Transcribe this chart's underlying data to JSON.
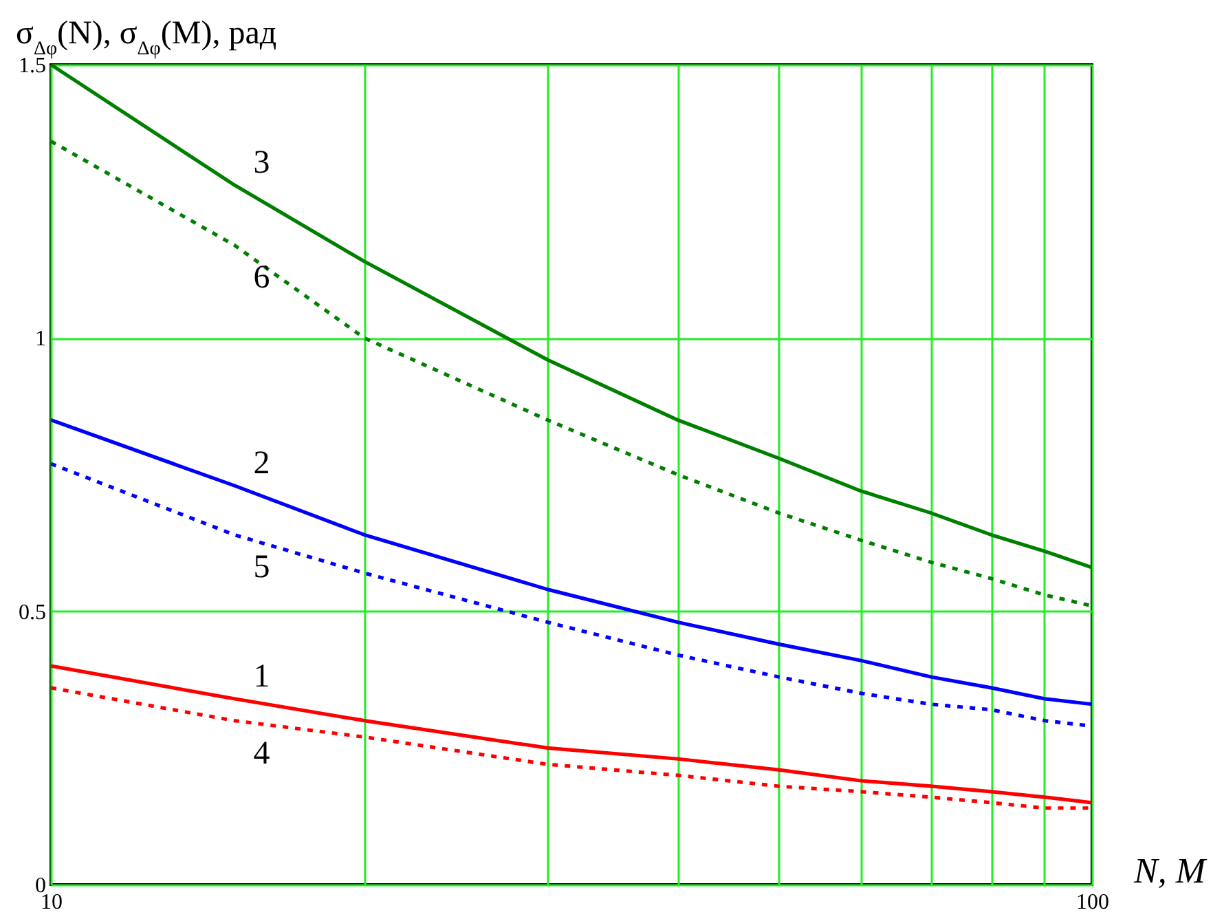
{
  "chart_data": {
    "type": "line",
    "ylabel": "σ$_{Δφ}$(N), σ$_{Δφ}$(M), рад",
    "xlabel": "N, M",
    "log": "x",
    "grid": true,
    "x": [
      10,
      15,
      20,
      30,
      40,
      50,
      60,
      70,
      80,
      90,
      100
    ],
    "xlim": [
      10,
      100
    ],
    "xticks": [
      10,
      {
        "value": 20,
        "label": null
      },
      {
        "value": 30,
        "label": null
      },
      {
        "value": 40,
        "label": null
      },
      {
        "value": 50,
        "label": null
      },
      {
        "value": 60,
        "label": null
      },
      {
        "value": 70,
        "label": null
      },
      {
        "value": 80,
        "label": null
      },
      {
        "value": 90,
        "label": null
      },
      100
    ],
    "ylim": [
      0,
      1.5
    ],
    "yticks": [
      0,
      0.5,
      1,
      1.5
    ],
    "series": [
      {
        "name": "1",
        "color": "#ff0000",
        "line_style": "solid",
        "values": [
          0.4,
          0.34,
          0.3,
          0.25,
          0.23,
          0.21,
          0.19,
          0.18,
          0.17,
          0.16,
          0.15
        ]
      },
      {
        "name": "2",
        "color": "#0000ff",
        "line_style": "solid",
        "values": [
          0.85,
          0.73,
          0.64,
          0.54,
          0.48,
          0.44,
          0.41,
          0.38,
          0.36,
          0.34,
          0.33
        ]
      },
      {
        "name": "3",
        "color": "#007f00",
        "line_style": "solid",
        "values": [
          1.5,
          1.28,
          1.14,
          0.96,
          0.85,
          0.78,
          0.72,
          0.68,
          0.64,
          0.61,
          0.58
        ]
      },
      {
        "name": "4",
        "color": "#ff0000",
        "line_style": "dashed",
        "values": [
          0.36,
          0.3,
          0.27,
          0.22,
          0.2,
          0.18,
          0.17,
          0.16,
          0.15,
          0.14,
          0.14
        ]
      },
      {
        "name": "5",
        "color": "#0000ff",
        "line_style": "dashed",
        "values": [
          0.77,
          0.64,
          0.57,
          0.48,
          0.42,
          0.38,
          0.35,
          0.33,
          0.32,
          0.3,
          0.29
        ]
      },
      {
        "name": "6",
        "color": "#007f00",
        "line_style": "dashed",
        "values": [
          1.36,
          1.17,
          1.0,
          0.85,
          0.75,
          0.68,
          0.63,
          0.59,
          0.56,
          0.53,
          0.51
        ]
      }
    ]
  }
}
